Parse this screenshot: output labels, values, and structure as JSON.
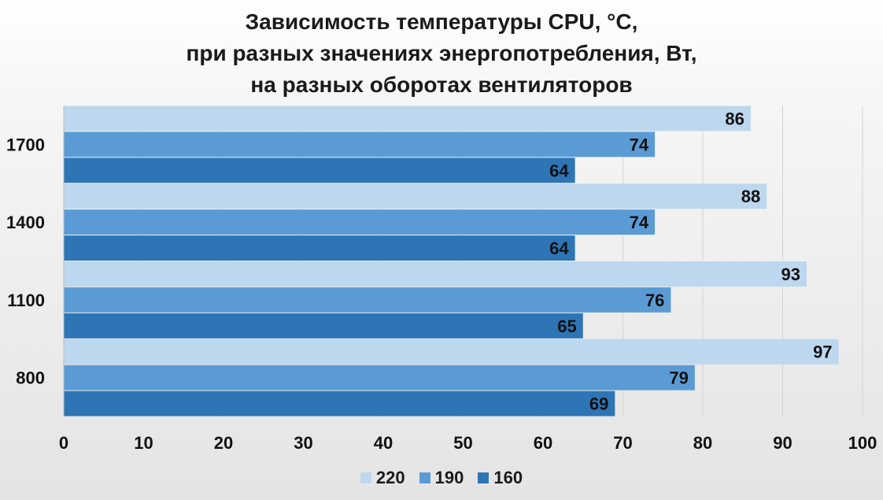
{
  "chart_data": {
    "type": "bar",
    "orientation": "horizontal",
    "title": [
      "Зависимость температуры CPU, °C,",
      "при разных значениях энергопотребления, Вт,",
      "на разных оборотах вентиляторов"
    ],
    "categories": [
      "1700",
      "1400",
      "1100",
      "800"
    ],
    "series": [
      {
        "name": "220",
        "color": "#bdd7ee",
        "values": [
          86,
          88,
          93,
          97
        ]
      },
      {
        "name": "190",
        "color": "#5b9bd5",
        "values": [
          74,
          74,
          76,
          79
        ]
      },
      {
        "name": "160",
        "color": "#2e75b6",
        "values": [
          64,
          64,
          65,
          69
        ]
      }
    ],
    "xlim": [
      0,
      100
    ],
    "xticks": [
      0,
      10,
      20,
      30,
      40,
      50,
      60,
      70,
      80,
      90,
      100
    ],
    "grid": "vertical",
    "legend": "bottom",
    "data_labels": true
  }
}
